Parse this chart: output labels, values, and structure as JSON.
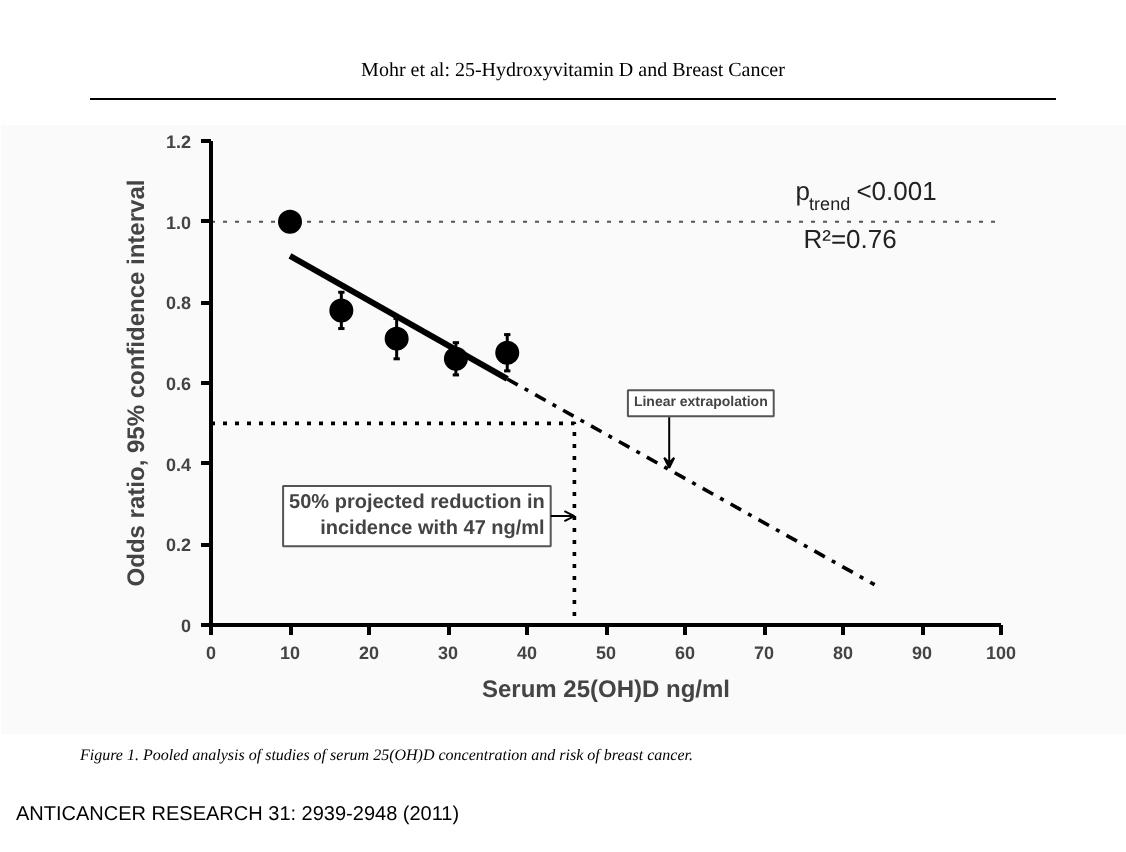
{
  "chart_data": {
    "type": "scatter",
    "title": "Mohr et al: 25-Hydroxyvitamin D and Breast Cancer",
    "xlabel": "Serum 25(OH)D ng/ml",
    "ylabel": "Odds ratio, 95% confidence interval",
    "xlim": [
      0,
      100
    ],
    "xticks": [
      0,
      10,
      20,
      30,
      40,
      50,
      60,
      70,
      80,
      90,
      100
    ],
    "ylim": [
      0,
      1.2
    ],
    "yticks": [
      0,
      {
        "value": 0.2,
        "label": "0.2"
      },
      {
        "value": 0.4,
        "label": "0.4"
      },
      {
        "value": 0.6,
        "label": "0.6"
      },
      {
        "value": 0.8,
        "label": "0.8"
      },
      {
        "value": 1,
        "label": "1.0"
      },
      {
        "value": 1.2,
        "label": "1.2"
      }
    ],
    "grid": false,
    "marker": "circle",
    "series": [
      {
        "color": "#000000",
        "x": [
          10,
          16.5,
          23.5,
          31,
          37.5
        ],
        "values": [
          1.0,
          0.78,
          0.71,
          0.66,
          0.675
        ],
        "errors": [
          null,
          0.045,
          0.05,
          0.04,
          0.045
        ]
      },
      {
        "type": "line",
        "color": "#000000",
        "line_style": "solid",
        "marker": "none",
        "x": [
          10,
          37.5
        ],
        "values": [
          0.915,
          0.61
        ]
      },
      {
        "type": "line",
        "color": "#000000",
        "line_style": "dashdot",
        "marker": "none",
        "x": [
          37.5,
          84
        ],
        "values": [
          0.61,
          0.1
        ]
      },
      {
        "type": "line",
        "color": "#000000",
        "line_style": "dotted",
        "marker": "none",
        "x": [
          0,
          46,
          46
        ],
        "values": [
          0.5,
          0.5,
          0
        ]
      }
    ],
    "ref_lines": [
      {
        "axis": "y",
        "value": 1.0,
        "color": "#555555",
        "line_style": "dotted"
      }
    ],
    "annotations": [
      "p$_{trend}$ <0.001",
      "R²=0.76",
      {
        "text": "Linear extrapolation",
        "x": 58,
        "y": 0.39
      },
      {
        "text": "50% projected reduction in\nincidence with 47 ng/ml",
        "x": 46,
        "y": 0.27
      },
      "Figure 1. Pooled analysis of studies of serum 25(OH)D concentration and risk of breast cancer.",
      "ANTICANCER RESEARCH 31: 2939-2948 (2011)"
    ]
  }
}
